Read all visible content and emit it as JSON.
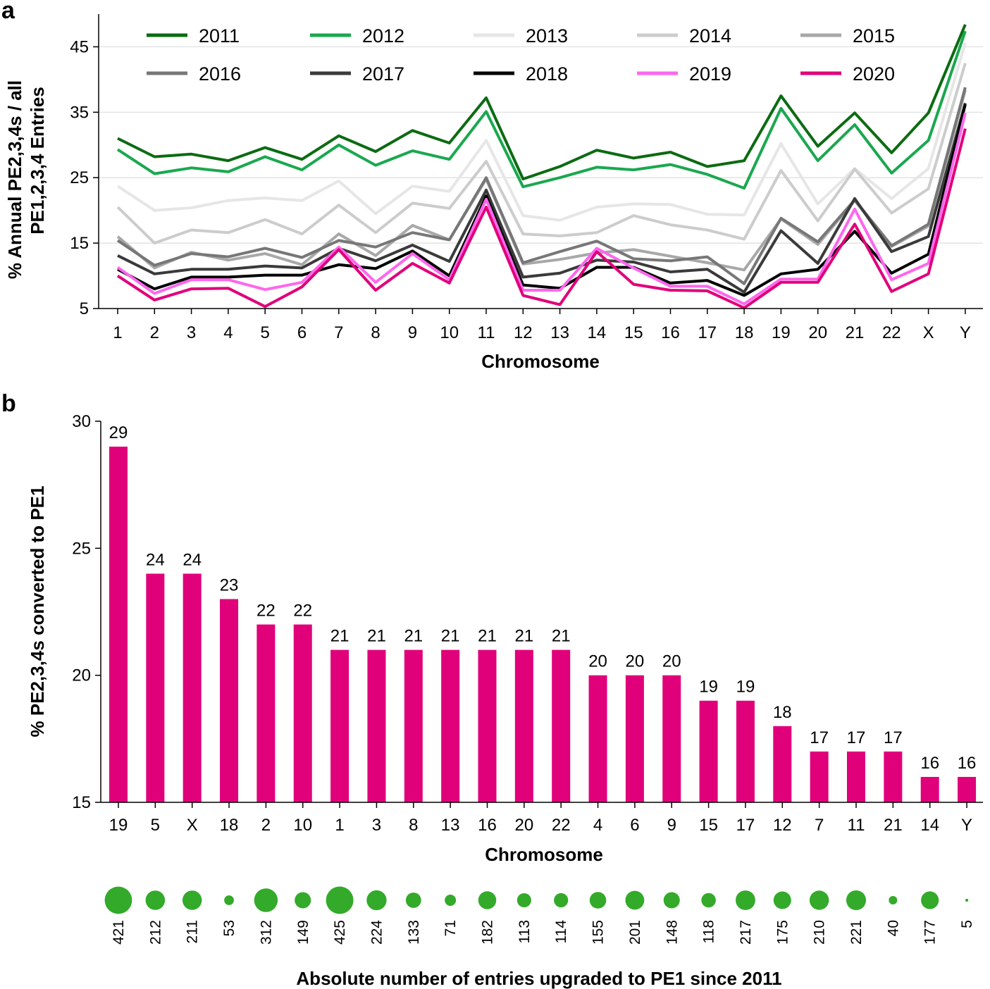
{
  "panels": {
    "a_letter": "a",
    "b_letter": "b"
  },
  "colors": {
    "bar": "#e0007a",
    "bubble": "#33aa2a",
    "grid": "#dddddd",
    "axis": "#000000"
  },
  "chart_data": [
    {
      "type": "line",
      "ylabel_line1": "% Annual PE2,3,4s / all",
      "ylabel_line2": "PE1,2,3,4 Entries",
      "xlabel": "Chromosome",
      "ylim": [
        5,
        50
      ],
      "yticks": [
        5,
        15,
        25,
        35,
        45
      ],
      "grid": true,
      "legend_position": "top",
      "categories": [
        "1",
        "2",
        "3",
        "4",
        "5",
        "6",
        "7",
        "8",
        "9",
        "10",
        "11",
        "12",
        "13",
        "14",
        "15",
        "16",
        "17",
        "18",
        "19",
        "20",
        "21",
        "22",
        "X",
        "Y"
      ],
      "series": [
        {
          "name": "2011",
          "color": "#0c6b12",
          "values": [
            31,
            28.2,
            28.6,
            27.6,
            29.6,
            27.8,
            31.4,
            29,
            32.2,
            30.3,
            37.2,
            24.8,
            26.7,
            29.2,
            28,
            28.9,
            26.7,
            27.6,
            37.5,
            29.8,
            34.9,
            28.8,
            34.9,
            48.4
          ]
        },
        {
          "name": "2012",
          "color": "#1aa84f",
          "values": [
            29.3,
            25.6,
            26.5,
            25.9,
            28.2,
            26.2,
            30,
            26.9,
            29.1,
            27.8,
            35.1,
            23.6,
            25,
            26.6,
            26.2,
            27,
            25.5,
            23.4,
            35.6,
            27.6,
            33.1,
            25.7,
            30.7,
            47.4
          ]
        },
        {
          "name": "2013",
          "color": "#e6e6e6",
          "values": [
            23.7,
            20,
            20.4,
            21.5,
            21.9,
            21.5,
            24.5,
            19.5,
            23.7,
            22.9,
            30.7,
            19.2,
            18.5,
            20.5,
            21,
            20.9,
            19.4,
            19.3,
            30.2,
            21,
            26.4,
            21.8,
            26.4,
            45.6
          ]
        },
        {
          "name": "2014",
          "color": "#cccccc",
          "values": [
            20.5,
            15,
            17,
            16.6,
            18.6,
            16.4,
            20.8,
            16.6,
            21.1,
            20.3,
            27.5,
            16.4,
            16.1,
            16.6,
            19.2,
            17.8,
            17,
            15.6,
            26.1,
            18.4,
            26.3,
            19.6,
            23.3,
            42.5
          ]
        },
        {
          "name": "2015",
          "color": "#a8a8a8",
          "values": [
            16,
            11.2,
            13.6,
            12.4,
            13.4,
            11.7,
            16.4,
            13.1,
            17.7,
            15.5,
            24.8,
            11.8,
            12.5,
            13.5,
            14,
            13,
            12,
            10.9,
            18.7,
            14.8,
            21.5,
            14.5,
            17.6,
            38.4
          ]
        },
        {
          "name": "2016",
          "color": "#777777",
          "values": [
            15.4,
            11.6,
            13.4,
            12.9,
            14.2,
            12.8,
            15.4,
            14.4,
            16.6,
            15.5,
            25,
            12,
            13.7,
            15.3,
            12.6,
            12.3,
            12.9,
            8.8,
            18.8,
            15.2,
            21.6,
            14.6,
            17.9,
            38.8
          ]
        },
        {
          "name": "2017",
          "color": "#3a3a3a",
          "values": [
            13.1,
            10.3,
            11,
            11,
            11.5,
            11.2,
            14.2,
            12.3,
            14.7,
            12.2,
            23.1,
            9.8,
            10.4,
            12.4,
            12.1,
            10.6,
            11,
            7.5,
            16.9,
            11.9,
            21.8,
            13.7,
            16,
            36.4
          ]
        },
        {
          "name": "2018",
          "color": "#000000",
          "values": [
            11,
            8,
            9.8,
            9.8,
            10.1,
            10.1,
            11.7,
            11.1,
            13.8,
            10,
            22.2,
            8.6,
            8.1,
            11.3,
            11.3,
            8.9,
            9.3,
            7,
            10.3,
            11,
            16.8,
            10.4,
            13.3,
            36.2
          ]
        },
        {
          "name": "2019",
          "color": "#ff66ee",
          "values": [
            11.3,
            7.3,
            9.4,
            9.4,
            7.9,
            9,
            14.4,
            9,
            13.4,
            9.4,
            21.7,
            7.8,
            7.8,
            14.2,
            11.2,
            8.4,
            8.4,
            5.7,
            9.5,
            9.5,
            20.2,
            9.4,
            11.9,
            34.9
          ]
        },
        {
          "name": "2020",
          "color": "#e0007a",
          "values": [
            10,
            6.3,
            8,
            8.1,
            5.3,
            8.3,
            14,
            7.8,
            11.9,
            8.9,
            20.5,
            7,
            5.6,
            13.7,
            8.7,
            7.8,
            7.7,
            5.1,
            9,
            9,
            17.9,
            7.6,
            10.3,
            32.5
          ]
        }
      ]
    },
    {
      "type": "bar",
      "ylabel": "% PE2,3,4s converted to PE1",
      "xlabel": "Chromosome",
      "ylim": [
        15,
        30
      ],
      "yticks": [
        15,
        20,
        25,
        30
      ],
      "categories": [
        "19",
        "5",
        "X",
        "18",
        "2",
        "10",
        "1",
        "3",
        "8",
        "13",
        "16",
        "20",
        "22",
        "4",
        "6",
        "9",
        "15",
        "17",
        "12",
        "7",
        "11",
        "21",
        "14",
        "Y"
      ],
      "values": [
        29,
        24,
        24,
        23,
        22,
        22,
        21,
        21,
        21,
        21,
        21,
        21,
        21,
        20,
        20,
        20,
        19,
        19,
        18,
        17,
        17,
        17,
        16,
        16
      ],
      "value_labels": [
        "29",
        "24",
        "24",
        "23",
        "22",
        "22",
        "21",
        "21",
        "21",
        "21",
        "21",
        "21",
        "21",
        "20",
        "20",
        "20",
        "19",
        "19",
        "18",
        "17",
        "17",
        "17",
        "16",
        "16"
      ],
      "color": "#e0007a"
    },
    {
      "type": "scatter",
      "title": "Absolute number of entries upgraded to PE1 since 2011",
      "values": [
        421,
        212,
        211,
        53,
        312,
        149,
        425,
        224,
        133,
        71,
        182,
        113,
        114,
        155,
        201,
        148,
        118,
        217,
        175,
        210,
        221,
        40,
        177,
        5
      ],
      "value_labels": [
        "421",
        "212",
        "211",
        "53",
        "312",
        "149",
        "425",
        "224",
        "133",
        "71",
        "182",
        "113",
        "114",
        "155",
        "201",
        "148",
        "118",
        "217",
        "175",
        "210",
        "221",
        "40",
        "177",
        "5"
      ],
      "color": "#33aa2a"
    }
  ]
}
